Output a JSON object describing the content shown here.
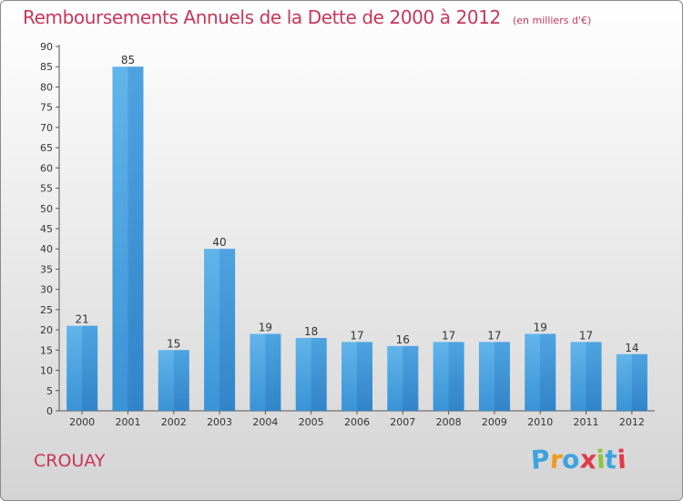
{
  "chart_data": {
    "type": "bar",
    "title": "Remboursements Annuels de la Dette de 2000 à 2012",
    "subtitle": "(en milliers d'€)",
    "xlabel": "",
    "ylabel": "",
    "categories": [
      "2000",
      "2001",
      "2002",
      "2003",
      "2004",
      "2005",
      "2006",
      "2007",
      "2008",
      "2009",
      "2010",
      "2011",
      "2012"
    ],
    "values": [
      21,
      85,
      15,
      40,
      19,
      18,
      17,
      16,
      17,
      17,
      19,
      17,
      14
    ],
    "ylim": [
      0,
      90
    ],
    "yticks": [
      0,
      5,
      10,
      15,
      20,
      25,
      30,
      35,
      40,
      45,
      50,
      55,
      60,
      65,
      70,
      75,
      80,
      85,
      90
    ],
    "grid": false,
    "legend": "none",
    "colors": {
      "bar": "#3a93d6",
      "bar_light": "#62b4ea",
      "text": "#c8365c"
    }
  },
  "commune": "CROUAY",
  "logo": {
    "letters": [
      "P",
      "r",
      "o",
      "x",
      "i",
      "t",
      "i"
    ],
    "colors": [
      "#3da2e0",
      "#f29b21",
      "#3da2e0",
      "#e13a4b",
      "#8cc63f",
      "#3da2e0",
      "#e13a4b"
    ],
    "tagline": ""
  }
}
